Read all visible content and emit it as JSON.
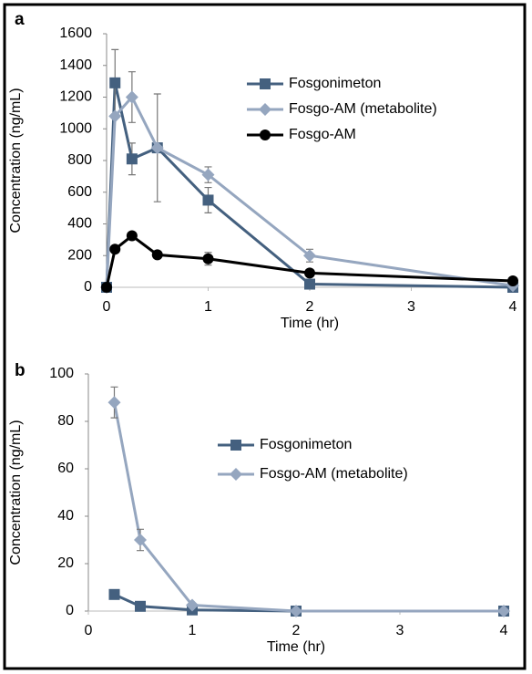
{
  "chart_data": [
    {
      "type": "line",
      "panel_label": "a",
      "x_label": "Time (hr)",
      "y_label": "Concentration (ng/mL)",
      "x": [
        0,
        0.083,
        0.25,
        0.5,
        1,
        2,
        4
      ],
      "xlim": [
        0,
        4
      ],
      "xticks": [
        0,
        1,
        2,
        3,
        4
      ],
      "ylim": [
        0,
        1600
      ],
      "yticks": [
        0,
        200,
        400,
        600,
        800,
        1000,
        1200,
        1400,
        1600
      ],
      "series": [
        {
          "name": "Fosgonimeton",
          "color": "#44607f",
          "marker": "square",
          "values": [
            0,
            1290,
            810,
            880,
            550,
            20,
            0
          ],
          "errors": [
            null,
            210,
            100,
            340,
            80,
            null,
            null
          ]
        },
        {
          "name": "Fosgo-AM (metabolite)",
          "color": "#95a6bf",
          "marker": "diamond",
          "values": [
            0,
            1080,
            1200,
            880,
            710,
            200,
            10
          ],
          "errors": [
            null,
            null,
            160,
            null,
            50,
            40,
            null
          ]
        },
        {
          "name": "Fosgo-AM",
          "color": "#000000",
          "marker": "circle",
          "values": [
            0,
            240,
            325,
            205,
            180,
            90,
            40
          ],
          "errors": [
            null,
            null,
            null,
            null,
            40,
            null,
            null
          ]
        }
      ]
    },
    {
      "type": "line",
      "panel_label": "b",
      "x_label": "Time (hr)",
      "y_label": "Concentration (ng/mL)",
      "x": [
        0.25,
        0.5,
        1,
        2,
        4
      ],
      "xlim": [
        0,
        4
      ],
      "xticks": [
        0,
        1,
        2,
        3,
        4
      ],
      "ylim": [
        0,
        100
      ],
      "yticks": [
        0,
        20,
        40,
        60,
        80,
        100
      ],
      "series": [
        {
          "name": "Fosgonimeton",
          "color": "#44607f",
          "marker": "square",
          "values": [
            7,
            2,
            0.5,
            0,
            0
          ],
          "errors": [
            null,
            null,
            null,
            null,
            null
          ]
        },
        {
          "name": "Fosgo-AM (metabolite)",
          "color": "#95a6bf",
          "marker": "diamond",
          "values": [
            88,
            30,
            2.5,
            0,
            0
          ],
          "errors": [
            6.5,
            4.5,
            null,
            null,
            null
          ]
        }
      ]
    }
  ]
}
